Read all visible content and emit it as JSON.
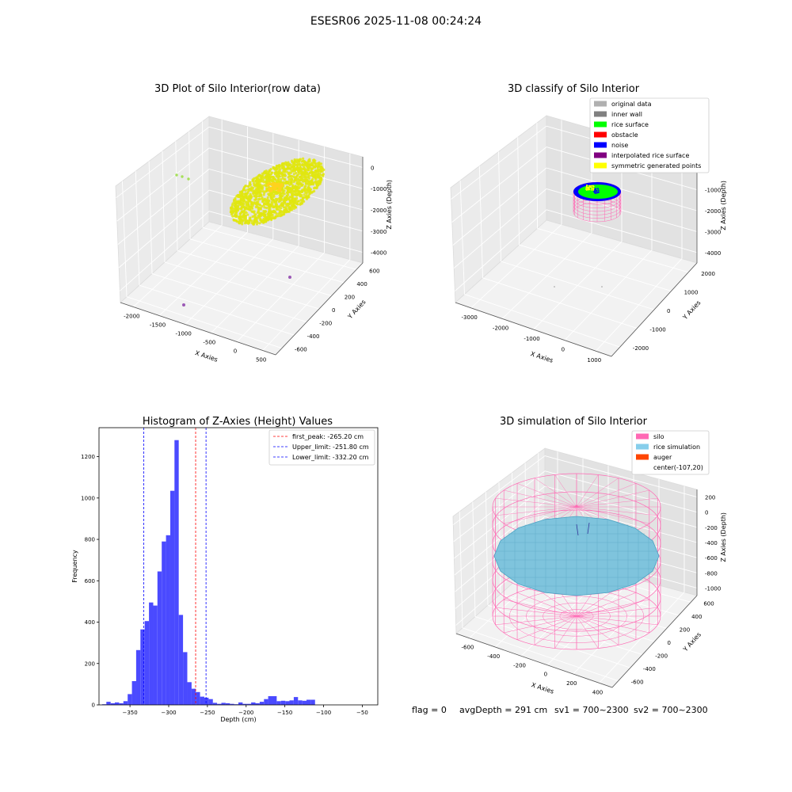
{
  "figure": {
    "suptitle": "ESESR06 2025-11-08 00:24:24",
    "status": {
      "flag": "flag = 0",
      "avg_depth": "avgDepth = 291 cm",
      "sv1": "sv1 = 700~2300",
      "sv2": "sv2 = 700~2300"
    }
  },
  "chart_data": [
    {
      "type": "scatter",
      "title": "3D Plot of Silo Interior(row data)",
      "xlabel": "X Axies",
      "ylabel": "Y Axies",
      "zlabel": "Z Axies (Depth)",
      "x_ticks": [
        "-2000",
        "-1500",
        "-1000",
        "-500",
        "0",
        "500"
      ],
      "y_ticks": [
        "-600",
        "-400",
        "-200",
        "0",
        "200",
        "400",
        "600"
      ],
      "z_ticks": [
        "0",
        "-1000",
        "-2000",
        "-3000",
        "-4000"
      ],
      "colors": {
        "points": "#e0e60f",
        "highlight": "#ffd21e",
        "outlier": "#9b59b6",
        "outlier_green": "#a6e05a"
      }
    },
    {
      "type": "scatter",
      "title": "3D classify of Silo Interior",
      "xlabel": "X Axies",
      "ylabel": "Y Axies",
      "zlabel": "Z Axies (Depth)",
      "x_ticks": [
        "-3000",
        "-2000",
        "-1000",
        "0",
        "1000"
      ],
      "y_ticks": [
        "-2000",
        "-1000",
        "0",
        "1000",
        "2000"
      ],
      "z_ticks": [
        "0",
        "-1000",
        "-2000",
        "-3000",
        "-4000"
      ],
      "legend": [
        {
          "label": "original data",
          "color": "#b0b0b0"
        },
        {
          "label": "inner wall",
          "color": "#808080"
        },
        {
          "label": "rice surface",
          "color": "#00ff00"
        },
        {
          "label": "obstacle",
          "color": "#ff0000"
        },
        {
          "label": "noise",
          "color": "#0000ff"
        },
        {
          "label": "interpolated rice surface",
          "color": "#800080"
        },
        {
          "label": "symmetric generated points",
          "color": "#ffff00"
        }
      ]
    },
    {
      "type": "bar",
      "title": "Histogram of Z-Axies (Height) Values",
      "xlabel": "Depth (cm)",
      "ylabel": "Frequency",
      "xlim": [
        -390,
        -30
      ],
      "ylim": [
        0,
        1340
      ],
      "x_ticks": [
        -350,
        -300,
        -250,
        -200,
        -150,
        -100,
        -50
      ],
      "y_ticks": [
        0,
        200,
        400,
        600,
        800,
        1000,
        1200
      ],
      "bin_width": 5.5,
      "bin_start": -386,
      "values": [
        3,
        15,
        8,
        12,
        8,
        18,
        52,
        115,
        265,
        365,
        405,
        495,
        480,
        645,
        790,
        820,
        1035,
        1280,
        435,
        255,
        110,
        78,
        62,
        40,
        35,
        28,
        10,
        5,
        10,
        8,
        5,
        3,
        12,
        5,
        5,
        12,
        8,
        15,
        28,
        42,
        42,
        18,
        20,
        18,
        22,
        38,
        22,
        20,
        25,
        25
      ],
      "bar_color": "#4a4aff",
      "vlines": [
        {
          "label": "first_peak: -265.20 cm",
          "x": -265.2,
          "color": "#ff0000"
        },
        {
          "label": "Upper_limit: -251.80 cm",
          "x": -251.8,
          "color": "#0000ff"
        },
        {
          "label": "Lower_limit: -332.20 cm",
          "x": -332.2,
          "color": "#0000ff"
        }
      ]
    },
    {
      "type": "scatter",
      "title": "3D simulation of Silo Interior",
      "xlabel": "X Axies",
      "ylabel": "Y Axies",
      "zlabel": "Z Axies (Depth)",
      "x_ticks": [
        "-600",
        "-400",
        "-200",
        "0",
        "200",
        "400"
      ],
      "y_ticks": [
        "-600",
        "-400",
        "-200",
        "0",
        "200",
        "400",
        "600"
      ],
      "z_ticks": [
        "200",
        "0",
        "-200",
        "-400",
        "-600",
        "-800",
        "-1000"
      ],
      "legend": [
        {
          "label": "silo",
          "color": "#ff69b4"
        },
        {
          "label": "rice simulation",
          "color": "#87ceeb"
        },
        {
          "label": "auger",
          "color": "#ff4500"
        },
        {
          "label": "center(-107,20)",
          "color": ""
        }
      ]
    }
  ]
}
